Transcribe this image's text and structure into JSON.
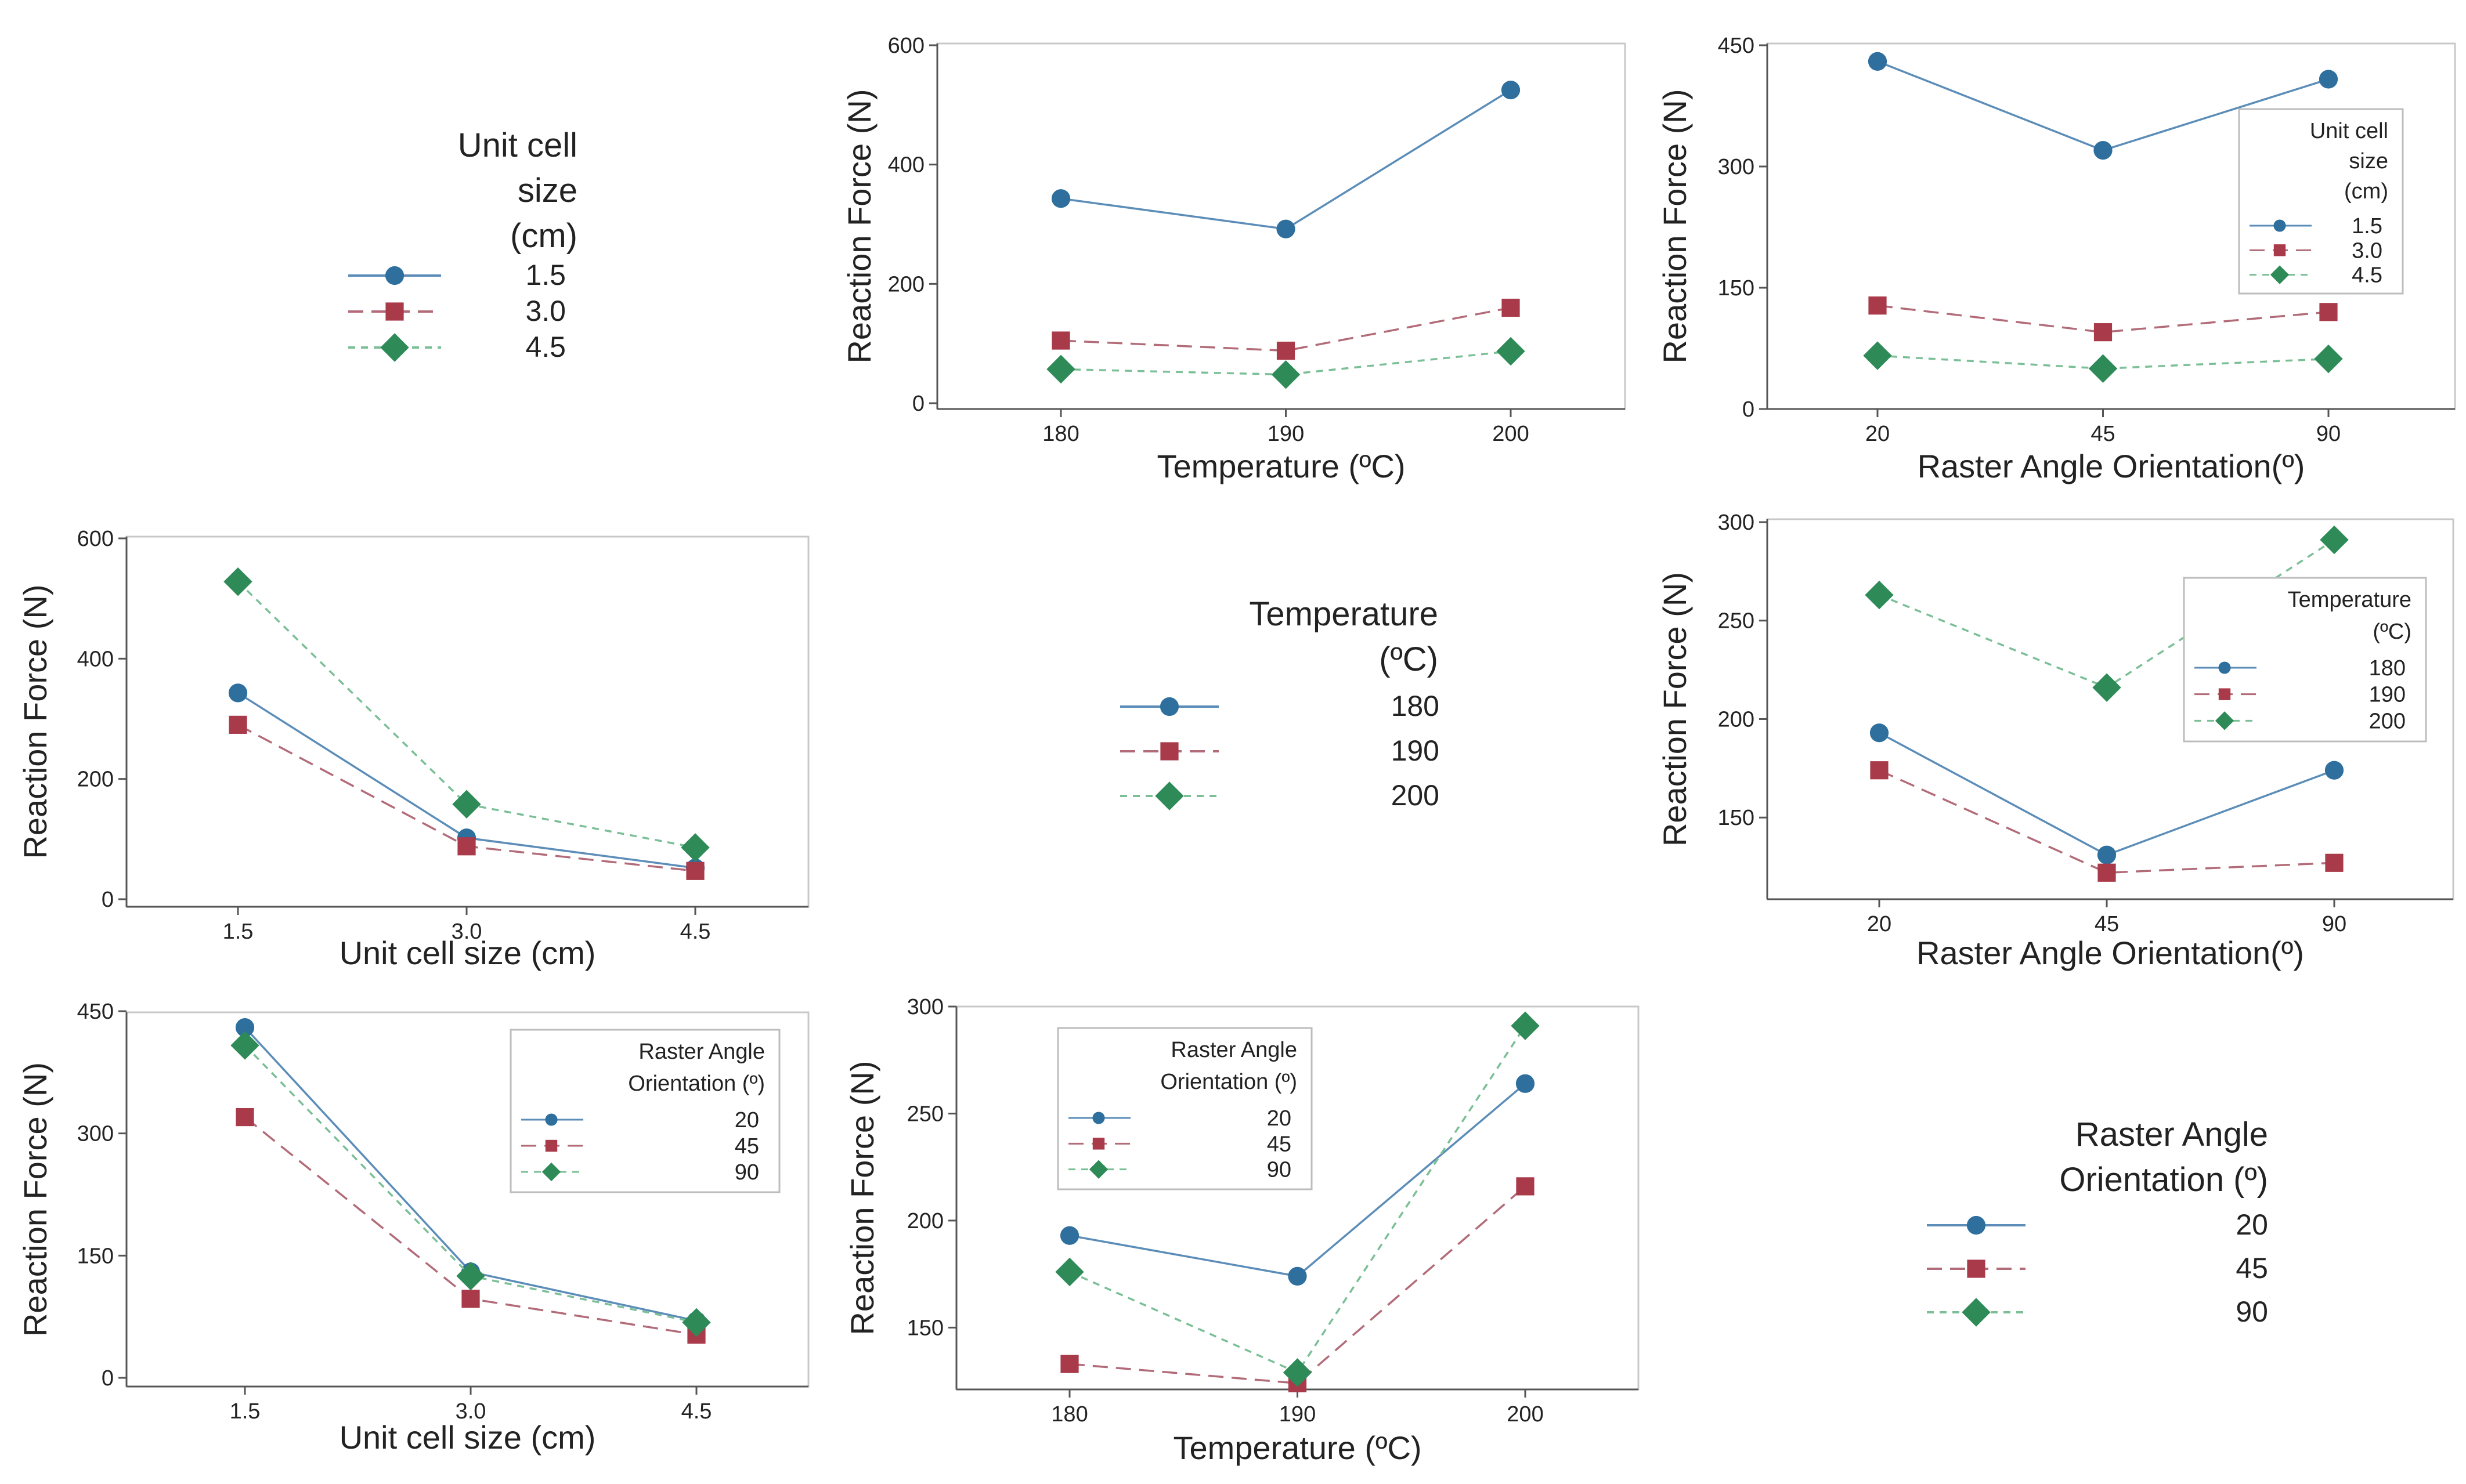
{
  "colors": {
    "series1": "#2e6f9e",
    "series2": "#a83a4a",
    "series3": "#2e8b57",
    "line1": "#5b8db8",
    "line2": "#b26b78",
    "line3": "#7bbf97"
  },
  "legends": {
    "unit_cell": {
      "title_lines": [
        "Unit cell",
        "size",
        "(cm)"
      ],
      "labels": [
        "1.5",
        "3.0",
        "4.5"
      ]
    },
    "temperature": {
      "title_lines": [
        "Temperature",
        "(ºC)"
      ],
      "labels": [
        "180",
        "190",
        "200"
      ]
    },
    "raster": {
      "title_lines": [
        "Raster Angle",
        "Orientation (º)"
      ],
      "labels": [
        "20",
        "45",
        "90"
      ]
    }
  },
  "chart_data": [
    {
      "id": "temp_by_unitcell",
      "type": "line",
      "xlabel": "Temperature (ºC)",
      "ylabel": "Reaction Force (N)",
      "categories": [
        "180",
        "190",
        "200"
      ],
      "ylim": [
        0,
        600
      ],
      "yticks": [
        "0",
        "200",
        "400",
        "600"
      ],
      "legend": "unit_cell",
      "series": [
        {
          "name": "1.5",
          "values": [
            343,
            292,
            525
          ]
        },
        {
          "name": "3.0",
          "values": [
            105,
            88,
            160
          ]
        },
        {
          "name": "4.5",
          "values": [
            57,
            48,
            87
          ]
        }
      ]
    },
    {
      "id": "raster_by_unitcell",
      "type": "line",
      "xlabel": "Raster Angle Orientation(º)",
      "ylabel": "Reaction Force (N)",
      "categories": [
        "20",
        "45",
        "90"
      ],
      "ylim": [
        0,
        450
      ],
      "yticks": [
        "0",
        "150",
        "300",
        "450"
      ],
      "legend": "unit_cell",
      "series": [
        {
          "name": "1.5",
          "values": [
            430,
            320,
            408
          ]
        },
        {
          "name": "3.0",
          "values": [
            128,
            95,
            120
          ]
        },
        {
          "name": "4.5",
          "values": [
            66,
            50,
            62
          ]
        }
      ]
    },
    {
      "id": "unitcell_by_temp",
      "type": "line",
      "xlabel": "Unit cell size (cm)",
      "ylabel": "Reaction Force (N)",
      "categories": [
        "1.5",
        "3.0",
        "4.5"
      ],
      "ylim": [
        0,
        600
      ],
      "yticks": [
        "0",
        "200",
        "400",
        "600"
      ],
      "legend": "temperature",
      "series": [
        {
          "name": "180",
          "values": [
            343,
            102,
            52
          ]
        },
        {
          "name": "190",
          "values": [
            290,
            88,
            47
          ]
        },
        {
          "name": "200",
          "values": [
            528,
            158,
            86
          ]
        }
      ]
    },
    {
      "id": "raster_by_temp",
      "type": "line",
      "xlabel": "Raster Angle Orientation(º)",
      "ylabel": "Reaction Force (N)",
      "categories": [
        "20",
        "45",
        "90"
      ],
      "ylim": [
        110,
        300
      ],
      "yticks": [
        "150",
        "200",
        "250",
        "300"
      ],
      "legend": "temperature",
      "series": [
        {
          "name": "180",
          "values": [
            193,
            131,
            174
          ]
        },
        {
          "name": "190",
          "values": [
            174,
            122,
            127
          ]
        },
        {
          "name": "200",
          "values": [
            263,
            216,
            291
          ]
        }
      ]
    },
    {
      "id": "unitcell_by_raster",
      "type": "line",
      "xlabel": "Unit cell size (cm)",
      "ylabel": "Reaction Force (N)",
      "categories": [
        "1.5",
        "3.0",
        "4.5"
      ],
      "ylim": [
        0,
        450
      ],
      "yticks": [
        "0",
        "150",
        "300",
        "450"
      ],
      "legend": "raster",
      "series": [
        {
          "name": "20",
          "values": [
            430,
            130,
            70
          ]
        },
        {
          "name": "45",
          "values": [
            320,
            97,
            53
          ]
        },
        {
          "name": "90",
          "values": [
            408,
            125,
            68
          ]
        }
      ]
    },
    {
      "id": "temp_by_raster",
      "type": "line",
      "xlabel": "Temperature (ºC)",
      "ylabel": "Reaction Force (N)",
      "categories": [
        "180",
        "190",
        "200"
      ],
      "ylim": [
        123,
        300
      ],
      "yticks": [
        "150",
        "200",
        "250",
        "300"
      ],
      "legend": "raster",
      "series": [
        {
          "name": "20",
          "values": [
            193,
            174,
            264
          ]
        },
        {
          "name": "45",
          "values": [
            133,
            124,
            216
          ]
        },
        {
          "name": "90",
          "values": [
            176,
            129,
            291
          ]
        }
      ]
    }
  ]
}
